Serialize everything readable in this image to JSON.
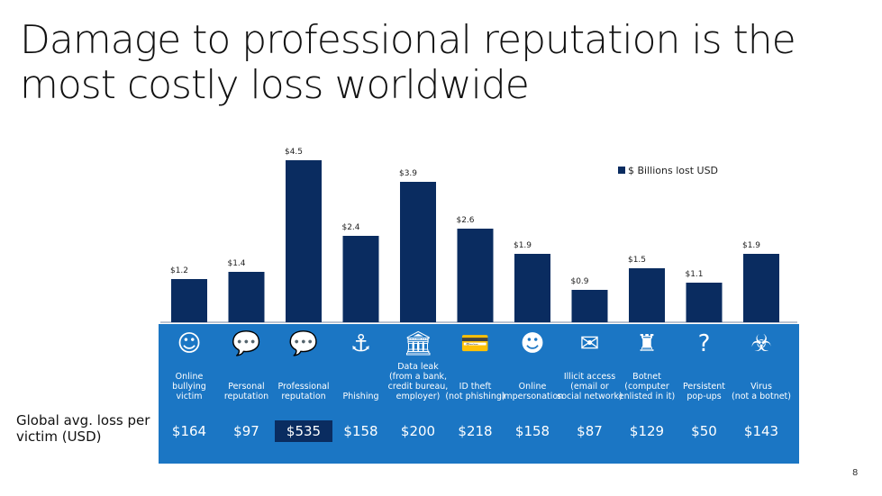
{
  "title_line1": "Damage to professional reputation is the",
  "title_line2": "most costly loss worldwide",
  "colors": {
    "bar": "#0a2c60",
    "band": "#1b76c4",
    "highlight": "#0a2c60"
  },
  "chart_data": {
    "type": "bar",
    "title": "Damage to professional reputation is the most costly loss worldwide",
    "series_name": "$ Billions lost USD",
    "categories": [
      "Online bullying victim",
      "Personal reputation",
      "Professional reputation",
      "Phishing",
      "Data leak (from a bank, credit bureau, employer)",
      "ID theft (not phishing)",
      "Online impersonation",
      "Illicit access (email or social network)",
      "Botnet (computer enlisted in it)",
      "Persistent pop-ups",
      "Virus (not a botnet)"
    ],
    "values": [
      1.2,
      1.4,
      4.5,
      2.4,
      3.9,
      2.6,
      1.9,
      0.9,
      1.5,
      1.1,
      1.9
    ],
    "value_labels": [
      "$1.2",
      "$1.4",
      "$4.5",
      "$2.4",
      "$3.9",
      "$2.6",
      "$1.9",
      "$0.9",
      "$1.5",
      "$1.1",
      "$1.9"
    ],
    "ylim": [
      0,
      4.5
    ],
    "legend_position": "top-right",
    "grid": false
  },
  "categories_display": [
    [
      "Online",
      "bullying",
      "victim"
    ],
    [
      "Personal",
      "reputation"
    ],
    [
      "Professional",
      "reputation"
    ],
    [
      "Phishing"
    ],
    [
      "Data leak",
      "(from a bank,",
      "credit bureau,",
      "employer)"
    ],
    [
      "ID theft",
      "(not phishing)"
    ],
    [
      "Online",
      "impersonation"
    ],
    [
      "Illicit access",
      "(email or",
      "social network)"
    ],
    [
      "Botnet",
      "(computer",
      "enlisted in it)"
    ],
    [
      "Persistent",
      "pop-ups"
    ],
    [
      "Virus",
      "(not a botnet)"
    ]
  ],
  "icons": [
    "mask-icon",
    "speech-bubbles-icon",
    "speech-bubbles-icon",
    "fishing-hook-icon",
    "bank-icon",
    "credit-card-icon",
    "drama-mask-icon",
    "envelope-icon",
    "robot-icon",
    "question-popup-icon",
    "virus-icon"
  ],
  "icon_glyphs": [
    "☺",
    "💬",
    "💬",
    "⚓",
    "🏛",
    "💳",
    "☻",
    "✉",
    "♜",
    "?",
    "☣"
  ],
  "loss_label": "Global avg. loss per victim (USD)",
  "losses": [
    "$164",
    "$97",
    "$535",
    "$158",
    "$200",
    "$218",
    "$158",
    "$87",
    "$129",
    "$50",
    "$143"
  ],
  "highlight_index": 2,
  "legend_label": "$ Billions lost USD",
  "page_number": "8"
}
